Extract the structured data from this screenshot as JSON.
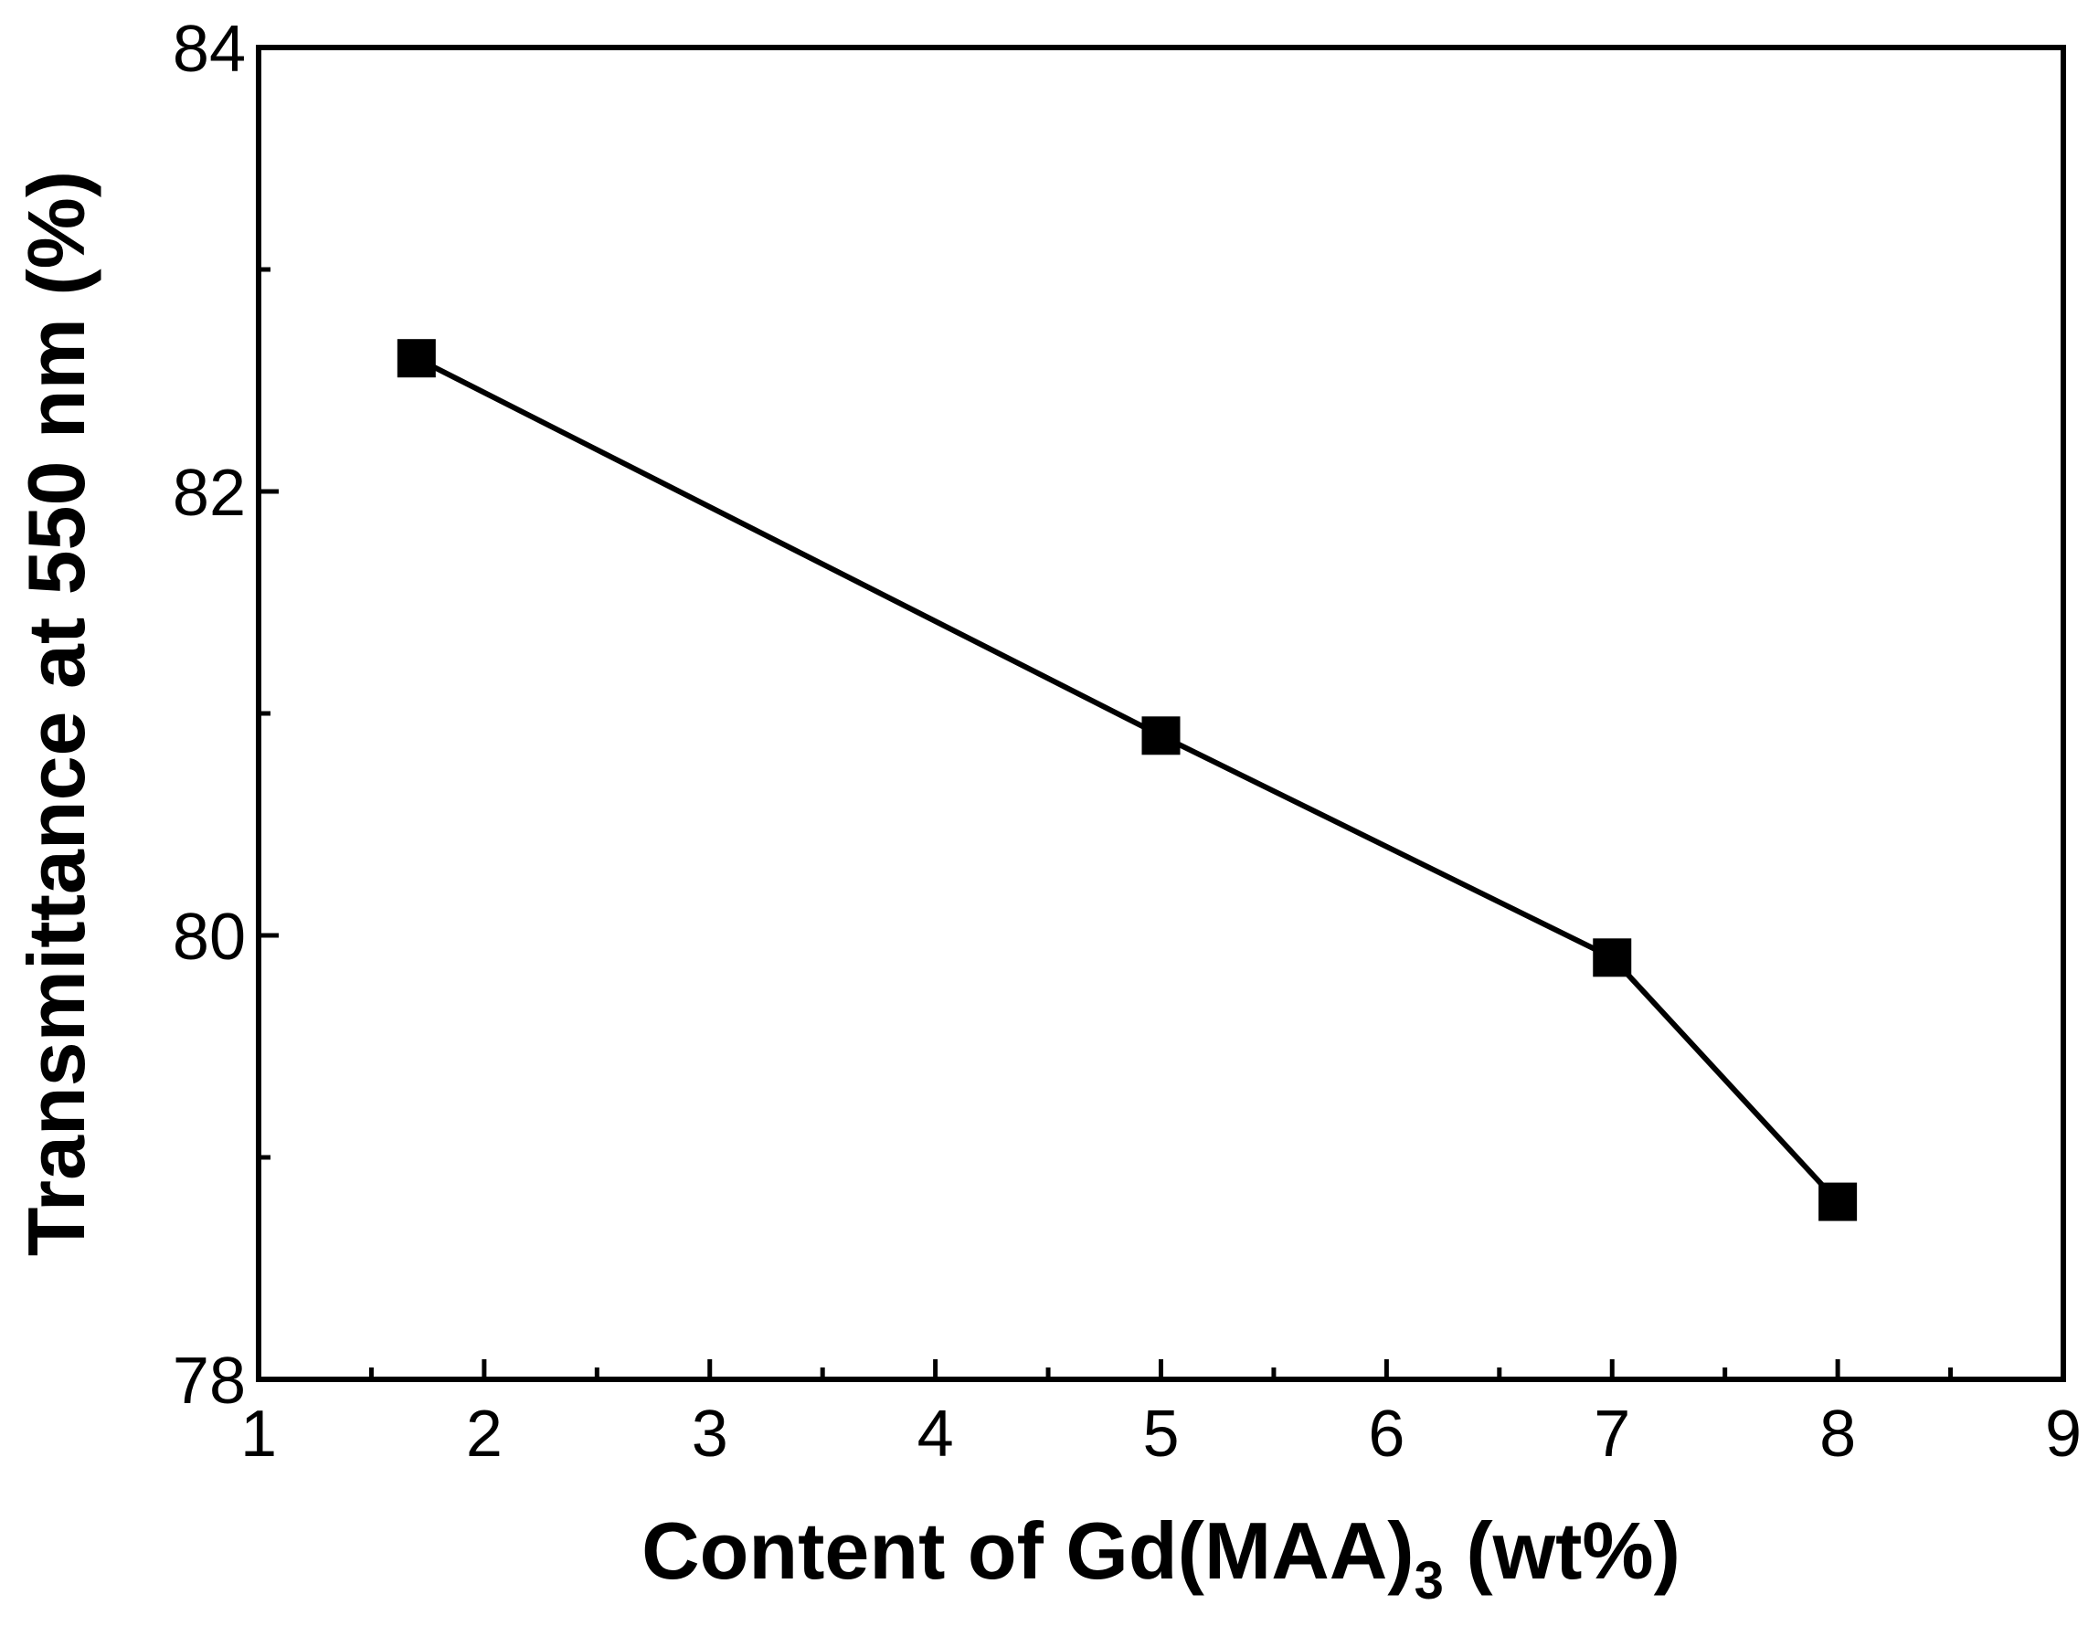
{
  "chart_data": {
    "type": "line",
    "title": "",
    "xlabel": "Content of Gd(MAA)",
    "xlabel_subscript": "3",
    "xlabel_suffix": " (wt%)",
    "ylabel": "Transmittance at 550 nm (%)",
    "xlim": [
      1,
      9
    ],
    "ylim": [
      78,
      84
    ],
    "x_ticks": [
      1,
      2,
      3,
      4,
      5,
      6,
      7,
      8,
      9
    ],
    "y_ticks": [
      78,
      80,
      82,
      84
    ],
    "x_minor_step": 0.5,
    "y_minor_step": 1,
    "grid": false,
    "marker": "square",
    "series": [
      {
        "x": [
          1.7,
          5,
          7,
          8
        ],
        "y": [
          82.6,
          80.9,
          79.9,
          78.8
        ]
      }
    ],
    "colors": {
      "line": "#000000",
      "marker": "#000000",
      "axis": "#000000"
    }
  }
}
